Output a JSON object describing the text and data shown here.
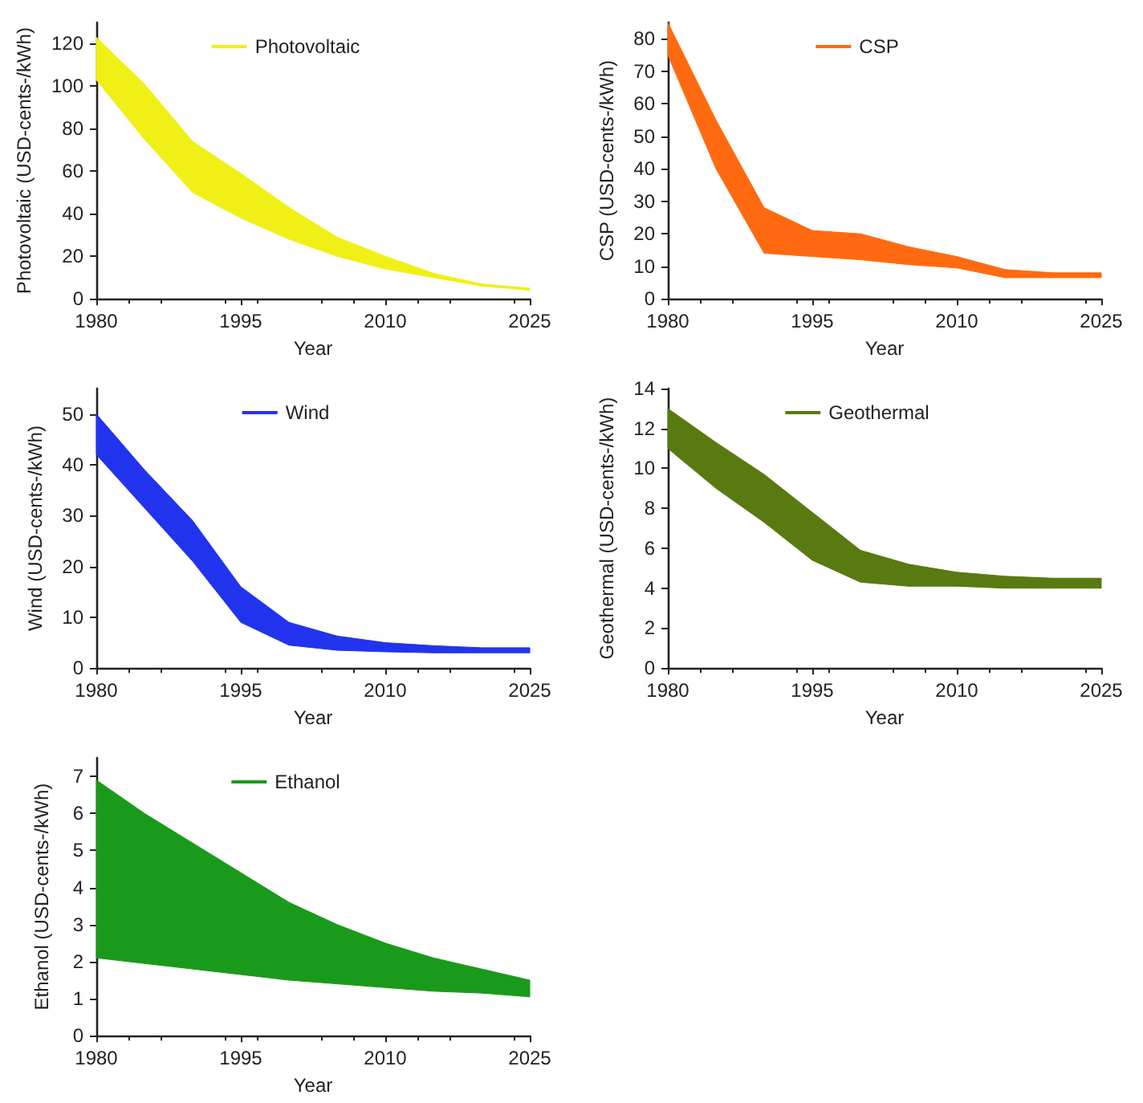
{
  "chart_data": [
    {
      "type": "area",
      "xlabel": "Year",
      "ylabel": "Photovoltaic (USD-cents-/kWh)",
      "x": [
        1980,
        1985,
        1990,
        1995,
        2000,
        2005,
        2010,
        2015,
        2020,
        2025
      ],
      "xlim": [
        1980,
        2025
      ],
      "xticks": [
        1980,
        1995,
        2010,
        2025
      ],
      "ylim": [
        0,
        130
      ],
      "yticks": [
        0,
        20,
        40,
        60,
        80,
        100,
        120
      ],
      "legend": "top",
      "grid": false,
      "series": [
        {
          "name": "Photovoltaic",
          "color": "#f0f016",
          "values": [
            null,
            null,
            null,
            null,
            null,
            null,
            null,
            null,
            null,
            null
          ],
          "lower": [
            103,
            75,
            50,
            38,
            28,
            20,
            14,
            10,
            6,
            4
          ],
          "upper": [
            123,
            101,
            74,
            59,
            43,
            29,
            20,
            12,
            7,
            5
          ]
        }
      ]
    },
    {
      "type": "area",
      "xlabel": "Year",
      "ylabel": "CSP (USD-cents-/kWh)",
      "x": [
        1980,
        1985,
        1990,
        1995,
        2000,
        2005,
        2010,
        2015,
        2020,
        2025
      ],
      "xlim": [
        1980,
        2025
      ],
      "xticks": [
        1980,
        1995,
        2010,
        2025
      ],
      "ylim": [
        0,
        85
      ],
      "yticks": [
        0,
        10,
        20,
        30,
        40,
        50,
        60,
        70,
        80
      ],
      "legend": "top",
      "grid": false,
      "series": [
        {
          "name": "CSP",
          "color": "#ff6a10",
          "values": [
            null,
            null,
            null,
            null,
            null,
            null,
            null,
            null,
            null,
            null
          ],
          "lower": [
            75,
            40,
            14,
            13,
            12,
            10.5,
            9.5,
            6.5,
            6.5,
            6.5
          ],
          "upper": [
            85,
            55,
            28,
            21,
            20,
            16,
            13,
            9,
            8,
            8
          ]
        }
      ]
    },
    {
      "type": "area",
      "xlabel": "Year",
      "ylabel": "Wind (USD-cents-/kWh)",
      "x": [
        1980,
        1985,
        1990,
        1995,
        2000,
        2005,
        2010,
        2015,
        2020,
        2025
      ],
      "xlim": [
        1980,
        2025
      ],
      "xticks": [
        1980,
        1995,
        2010,
        2025
      ],
      "ylim": [
        0,
        55
      ],
      "yticks": [
        0,
        10,
        20,
        30,
        40,
        50
      ],
      "legend": "top",
      "grid": false,
      "series": [
        {
          "name": "Wind",
          "color": "#2233ee",
          "values": [
            null,
            null,
            null,
            null,
            null,
            null,
            null,
            null,
            null,
            null
          ],
          "lower": [
            42,
            31.5,
            21,
            9,
            4.5,
            3.5,
            3.2,
            3,
            3,
            3
          ],
          "upper": [
            50,
            39,
            29,
            16,
            9,
            6.3,
            5,
            4.4,
            4,
            4
          ]
        }
      ]
    },
    {
      "type": "area",
      "xlabel": "Year",
      "ylabel": "Geothermal (USD-cents-/kWh)",
      "x": [
        1980,
        1985,
        1990,
        1995,
        2000,
        2005,
        2010,
        2015,
        2020,
        2025
      ],
      "xlim": [
        1980,
        2025
      ],
      "xticks": [
        1980,
        1995,
        2010,
        2025
      ],
      "ylim": [
        0,
        14
      ],
      "yticks": [
        0,
        2,
        4,
        6,
        8,
        10,
        12,
        14
      ],
      "legend": "top",
      "grid": false,
      "series": [
        {
          "name": "Geothermal",
          "color": "#587a10",
          "values": [
            null,
            null,
            null,
            null,
            null,
            null,
            null,
            null,
            null,
            null
          ],
          "lower": [
            11,
            9,
            7.3,
            5.4,
            4.3,
            4.1,
            4.1,
            4,
            4,
            4
          ],
          "upper": [
            13,
            11.3,
            9.7,
            7.8,
            5.9,
            5.2,
            4.8,
            4.6,
            4.5,
            4.5
          ]
        }
      ]
    },
    {
      "type": "area",
      "xlabel": "Year",
      "ylabel": "Ethanol (USD-cents-/kWh)",
      "x": [
        1980,
        1985,
        1990,
        1995,
        2000,
        2005,
        2010,
        2015,
        2020,
        2025
      ],
      "xlim": [
        1980,
        2025
      ],
      "xticks": [
        1980,
        1995,
        2010,
        2025
      ],
      "ylim": [
        0,
        7.5
      ],
      "yticks": [
        0,
        1,
        2,
        3,
        4,
        5,
        6,
        7
      ],
      "legend": "top",
      "grid": false,
      "series": [
        {
          "name": "Ethanol",
          "color": "#1a9a1a",
          "values": [
            null,
            null,
            null,
            null,
            null,
            null,
            null,
            null,
            null,
            null
          ],
          "lower": [
            2.1,
            1.95,
            1.8,
            1.65,
            1.5,
            1.4,
            1.3,
            1.2,
            1.15,
            1.05
          ],
          "upper": [
            6.9,
            6,
            5.2,
            4.4,
            3.6,
            3,
            2.5,
            2.1,
            1.8,
            1.5
          ]
        }
      ]
    }
  ]
}
